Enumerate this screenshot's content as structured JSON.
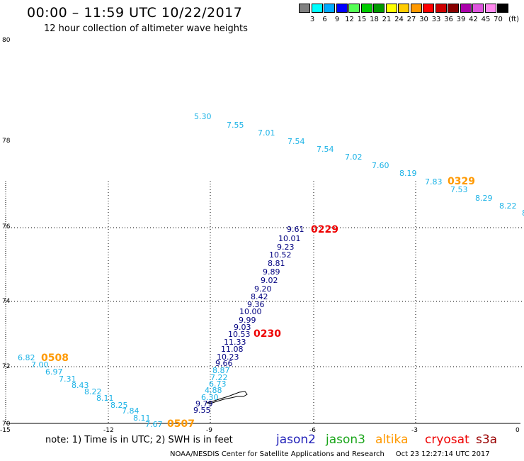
{
  "header": {
    "title": "00:00 – 11:59 UTC 10/22/2017",
    "subtitle": "12 hour collection of altimeter wave heights"
  },
  "colorbar": {
    "unit": "(ft)",
    "items": [
      {
        "label": "3",
        "color": "#808080"
      },
      {
        "label": "6",
        "color": "#00ffff"
      },
      {
        "label": "9",
        "color": "#00aaff"
      },
      {
        "label": "12",
        "color": "#0000ff"
      },
      {
        "label": "15",
        "color": "#55ff55"
      },
      {
        "label": "18",
        "color": "#00cc00"
      },
      {
        "label": "21",
        "color": "#009900"
      },
      {
        "label": "24",
        "color": "#ffff00"
      },
      {
        "label": "27",
        "color": "#ffcc00"
      },
      {
        "label": "30",
        "color": "#ff9900"
      },
      {
        "label": "33",
        "color": "#ff0000"
      },
      {
        "label": "36",
        "color": "#cc0000"
      },
      {
        "label": "39",
        "color": "#880000"
      },
      {
        "label": "42",
        "color": "#aa00aa"
      },
      {
        "label": "45",
        "color": "#dd55dd"
      },
      {
        "label": "70",
        "color": "#ff88ee"
      },
      {
        "label": "",
        "color": "#000000"
      }
    ]
  },
  "axes": {
    "lat_labels": [
      "80",
      "78",
      "76",
      "74",
      "72",
      "70"
    ],
    "lon_labels": [
      "-15",
      "-12",
      "-9",
      "-6",
      "-3",
      "0"
    ]
  },
  "colors": {
    "jason2": "#1f1fb8",
    "jason3": "#1aa51a",
    "altika": "#ff9900",
    "cryosat": "#ee0000",
    "s3a": "#990000",
    "cyan_track": "#1ab2e6",
    "navy_track": "#000080"
  },
  "tracks": {
    "altika_north": {
      "color": "#1ab2e6",
      "values": [
        "5.30",
        "7.55",
        "7.01",
        "7.54",
        "7.54",
        "7.02",
        "7.60",
        "8.19",
        "7.83",
        "7.53",
        "8.29",
        "8.22",
        "8"
      ]
    },
    "jason2_center": {
      "color": "#000080",
      "values": [
        "9.61",
        "10.01",
        "9.23",
        "10.52",
        "8.81",
        "9.89",
        "9.02",
        "9.20",
        "8.42",
        "9.36",
        "10.00",
        "9.99",
        "9.03",
        "10.53",
        "11.33",
        "11.08",
        "10.23",
        "9.66"
      ]
    },
    "altika_center_low": {
      "color": "#1ab2e6",
      "values": [
        "8.87",
        "6.73",
        "7.22",
        "4.88",
        "6.30"
      ]
    },
    "jason2_bottom": {
      "color": "#000080",
      "values": [
        "9.79",
        "9.55"
      ]
    },
    "altika_west": {
      "color": "#1ab2e6",
      "values": [
        "6.82",
        "7.00",
        "6.97",
        "7.31",
        "8.43",
        "8.22",
        "8.11",
        "8.25",
        "7.84",
        "8.11",
        "7.67"
      ]
    }
  },
  "time_labels": [
    {
      "text": "0329",
      "color": "#ff9900"
    },
    {
      "text": "0229",
      "color": "#ee0000"
    },
    {
      "text": "0230",
      "color": "#ee0000"
    },
    {
      "text": "0508",
      "color": "#ff9900"
    },
    {
      "text": "0507",
      "color": "#ff9900"
    }
  ],
  "note": "note: 1) Time is in UTC; 2) SWH is in feet",
  "satellites": [
    {
      "name": "jason2",
      "color": "#1f1fb8"
    },
    {
      "name": "jason3",
      "color": "#1aa51a"
    },
    {
      "name": "altika",
      "color": "#ff9900"
    },
    {
      "name": "cryosat",
      "color": "#ee0000"
    },
    {
      "name": "s3a",
      "color": "#990000"
    }
  ],
  "footer": "NOAA/NESDIS Center for Satellite Applications and Research     Oct 23 12:27:14 UTC 2017"
}
